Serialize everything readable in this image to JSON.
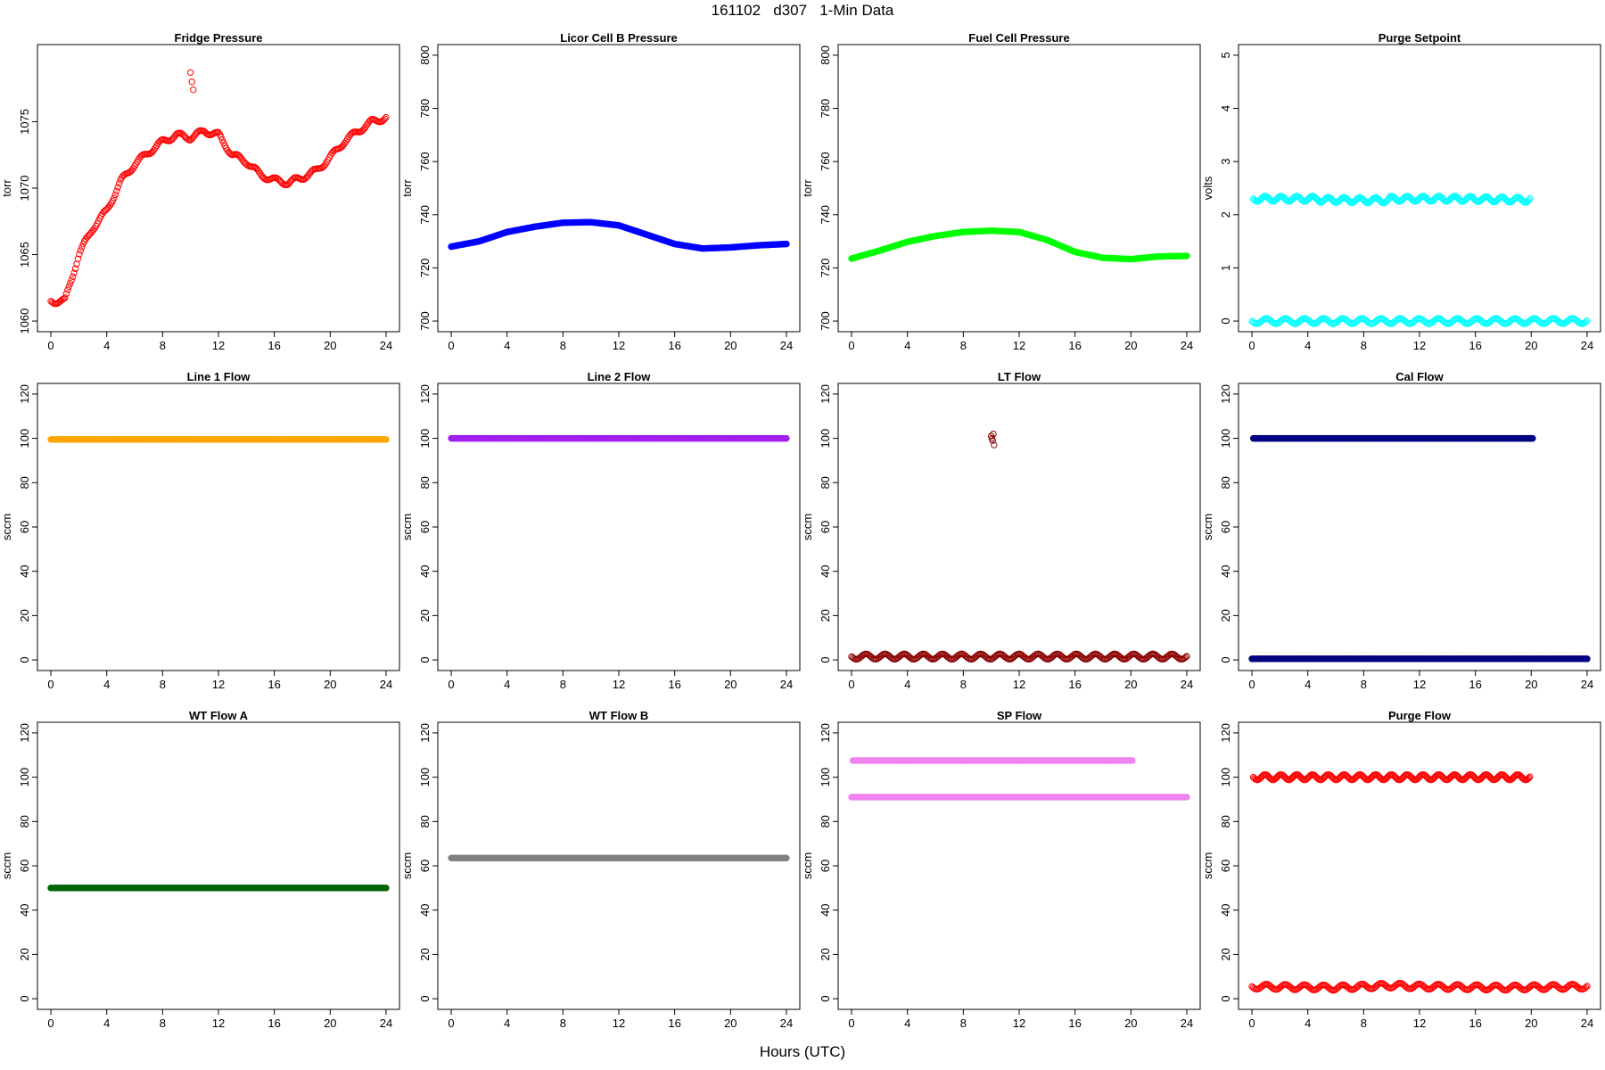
{
  "title": "161102   d307   1-Min Data",
  "xlabel": "Hours (UTC)",
  "chart_data": [
    {
      "type": "scatter",
      "title": "Fridge Pressure",
      "ylabel": "torr",
      "color": "#ff0000",
      "marker": "hollow",
      "xlim": [
        0,
        24
      ],
      "xticks": [
        0,
        4,
        8,
        12,
        16,
        20,
        24
      ],
      "ylim": [
        1060,
        1080
      ],
      "yticks": [
        1060,
        1065,
        1070,
        1075
      ],
      "series": [
        {
          "x": [
            0,
            1,
            2,
            3,
            4,
            5,
            6,
            7,
            8,
            9,
            10,
            11,
            12,
            13,
            14,
            15,
            16,
            17,
            18,
            19,
            20,
            21,
            22,
            23,
            24
          ],
          "y": [
            1061.5,
            1061.5,
            1065,
            1067,
            1068.3,
            1070.5,
            1071.8,
            1072.7,
            1073.5,
            1074,
            1073.8,
            1074.3,
            1074,
            1072.5,
            1072,
            1071,
            1070.6,
            1070.4,
            1070.8,
            1071.3,
            1072.3,
            1073.5,
            1074.3,
            1075,
            1075.3
          ]
        },
        {
          "x": [
            10,
            10.1,
            10.2
          ],
          "y": [
            1078.7,
            1078,
            1077.4
          ]
        }
      ]
    },
    {
      "type": "scatter",
      "title": "Licor Cell B Pressure",
      "ylabel": "torr",
      "color": "#0000ff",
      "marker": "filled",
      "xlim": [
        0,
        24
      ],
      "xticks": [
        0,
        4,
        8,
        12,
        16,
        20,
        24
      ],
      "ylim": [
        700,
        800
      ],
      "yticks": [
        700,
        720,
        740,
        760,
        780,
        800
      ],
      "series": [
        {
          "x": [
            0,
            2,
            4,
            6,
            8,
            10,
            12,
            14,
            16,
            18,
            20,
            22,
            24
          ],
          "y": [
            728,
            730,
            733.5,
            735.5,
            737,
            737.2,
            736,
            732.5,
            729,
            727.3,
            727.7,
            728.5,
            729
          ]
        }
      ]
    },
    {
      "type": "scatter",
      "title": "Fuel Cell Pressure",
      "ylabel": "torr",
      "color": "#00ff00",
      "marker": "filled",
      "xlim": [
        0,
        24
      ],
      "xticks": [
        0,
        4,
        8,
        12,
        16,
        20,
        24
      ],
      "ylim": [
        700,
        800
      ],
      "yticks": [
        700,
        720,
        740,
        760,
        780,
        800
      ],
      "series": [
        {
          "x": [
            0,
            2,
            4,
            6,
            8,
            10,
            12,
            14,
            16,
            18,
            20,
            22,
            24
          ],
          "y": [
            723.5,
            726.5,
            729.8,
            732,
            733.5,
            734,
            733.5,
            730.5,
            726,
            723.8,
            723.3,
            724.3,
            724.5
          ]
        }
      ]
    },
    {
      "type": "scatter",
      "title": "Purge Setpoint",
      "ylabel": "volts",
      "color": "#00ffff",
      "marker": "hollow",
      "xlim": [
        0,
        24
      ],
      "xticks": [
        0,
        4,
        8,
        12,
        16,
        20,
        24
      ],
      "ylim": [
        0,
        5
      ],
      "yticks": [
        0,
        1,
        2,
        3,
        4,
        5
      ],
      "series": [
        {
          "x": [
            0,
            24
          ],
          "y": [
            0,
            0
          ]
        },
        {
          "x": [
            0.1,
            4.8,
            4.9,
            9.7,
            9.9,
            14.7,
            14.8,
            19.7,
            19.9
          ],
          "y": [
            2.3,
            2.3,
            2.28,
            2.27,
            2.3,
            2.3,
            2.3,
            2.28,
            2.3
          ]
        }
      ]
    },
    {
      "type": "scatter",
      "title": "Line 1 Flow",
      "ylabel": "sccm",
      "color": "#ffa500",
      "marker": "filled",
      "xlim": [
        0,
        24
      ],
      "xticks": [
        0,
        4,
        8,
        12,
        16,
        20,
        24
      ],
      "ylim": [
        0,
        120
      ],
      "yticks": [
        0,
        20,
        40,
        60,
        80,
        100,
        120
      ],
      "series": [
        {
          "x": [
            0,
            24
          ],
          "y": [
            99.5,
            99.5
          ]
        }
      ]
    },
    {
      "type": "scatter",
      "title": "Line 2 Flow",
      "ylabel": "sccm",
      "color": "#a020f0",
      "marker": "filled",
      "xlim": [
        0,
        24
      ],
      "xticks": [
        0,
        4,
        8,
        12,
        16,
        20,
        24
      ],
      "ylim": [
        0,
        120
      ],
      "yticks": [
        0,
        20,
        40,
        60,
        80,
        100,
        120
      ],
      "series": [
        {
          "x": [
            0,
            24
          ],
          "y": [
            100,
            100
          ]
        }
      ]
    },
    {
      "type": "scatter",
      "title": "LT Flow",
      "ylabel": "sccm",
      "color": "#8b0000",
      "marker": "hollow",
      "xlim": [
        0,
        24
      ],
      "xticks": [
        0,
        4,
        8,
        12,
        16,
        20,
        24
      ],
      "ylim": [
        0,
        120
      ],
      "yticks": [
        0,
        20,
        40,
        60,
        80,
        100,
        120
      ],
      "series": [
        {
          "x": [
            0,
            24
          ],
          "y": [
            1.5,
            1.5
          ]
        },
        {
          "x": [
            10,
            10.1,
            10.2,
            10.05,
            10.15
          ],
          "y": [
            101,
            99,
            97,
            100,
            102
          ]
        }
      ]
    },
    {
      "type": "scatter",
      "title": "Cal Flow",
      "ylabel": "sccm",
      "color": "#000080",
      "marker": "filled",
      "xlim": [
        0,
        24
      ],
      "xticks": [
        0,
        4,
        8,
        12,
        16,
        20,
        24
      ],
      "ylim": [
        0,
        120
      ],
      "yticks": [
        0,
        20,
        40,
        60,
        80,
        100,
        120
      ],
      "series": [
        {
          "x": [
            0,
            24
          ],
          "y": [
            0.5,
            0.5
          ]
        },
        {
          "x": [
            0.1,
            4.8,
            4.9,
            9.8,
            10.2,
            14.7,
            14.8,
            19.8,
            20.1
          ],
          "y": [
            100,
            100,
            100,
            100,
            100,
            100,
            100,
            100,
            100
          ]
        }
      ]
    },
    {
      "type": "scatter",
      "title": "WT Flow A",
      "ylabel": "sccm",
      "color": "#006400",
      "marker": "filled",
      "xlim": [
        0,
        24
      ],
      "xticks": [
        0,
        4,
        8,
        12,
        16,
        20,
        24
      ],
      "ylim": [
        0,
        120
      ],
      "yticks": [
        0,
        20,
        40,
        60,
        80,
        100,
        120
      ],
      "series": [
        {
          "x": [
            0,
            24
          ],
          "y": [
            50,
            50
          ]
        }
      ]
    },
    {
      "type": "scatter",
      "title": "WT Flow B",
      "ylabel": "sccm",
      "color": "#808080",
      "marker": "filled",
      "xlim": [
        0,
        24
      ],
      "xticks": [
        0,
        4,
        8,
        12,
        16,
        20,
        24
      ],
      "ylim": [
        0,
        120
      ],
      "yticks": [
        0,
        20,
        40,
        60,
        80,
        100,
        120
      ],
      "series": [
        {
          "x": [
            0,
            24
          ],
          "y": [
            63.5,
            63.5
          ]
        }
      ]
    },
    {
      "type": "scatter",
      "title": "SP Flow",
      "ylabel": "sccm",
      "color": "#ee82ee",
      "marker": "filled",
      "xlim": [
        0,
        24
      ],
      "xticks": [
        0,
        4,
        8,
        12,
        16,
        20,
        24
      ],
      "ylim": [
        0,
        120
      ],
      "yticks": [
        0,
        20,
        40,
        60,
        80,
        100,
        120
      ],
      "series": [
        {
          "x": [
            0,
            24
          ],
          "y": [
            91,
            91
          ]
        },
        {
          "x": [
            0.1,
            4.9,
            5.0,
            9.8,
            10.2,
            14.8,
            14.9,
            19.8,
            20.1
          ],
          "y": [
            107.5,
            107.5,
            107.5,
            107.5,
            107.5,
            107.5,
            107.5,
            107.5,
            107.5
          ]
        }
      ]
    },
    {
      "type": "scatter",
      "title": "Purge Flow",
      "ylabel": "sccm",
      "color": "#ff0000",
      "marker": "hollow",
      "xlim": [
        0,
        24
      ],
      "xticks": [
        0,
        4,
        8,
        12,
        16,
        20,
        24
      ],
      "ylim": [
        0,
        120
      ],
      "yticks": [
        0,
        20,
        40,
        60,
        80,
        100,
        120
      ],
      "series": [
        {
          "x": [
            0,
            6,
            10,
            12,
            18,
            24
          ],
          "y": [
            5.5,
            5,
            6,
            5.5,
            5,
            5.5
          ]
        },
        {
          "x": [
            0.1,
            4.8,
            4.9,
            9.8,
            10.2,
            14.7,
            14.8,
            19.7,
            19.9
          ],
          "y": [
            100,
            100,
            100,
            100,
            100,
            100,
            100,
            100,
            100
          ]
        }
      ]
    }
  ]
}
